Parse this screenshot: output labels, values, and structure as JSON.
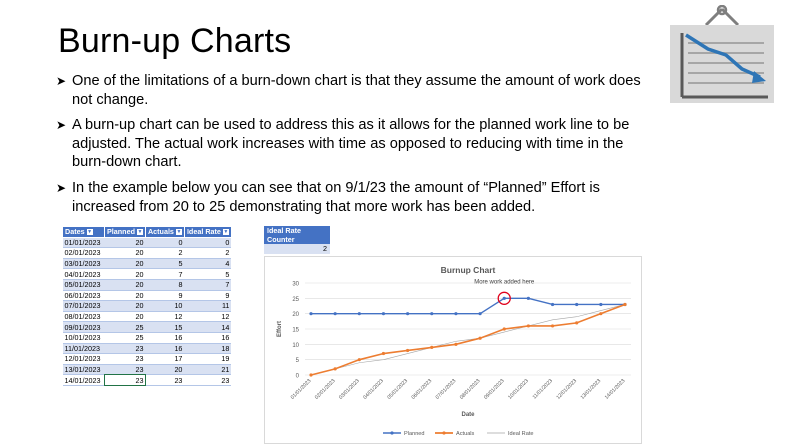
{
  "slide": {
    "title": "Burn-up Charts",
    "bullets": [
      "One of the limitations of a burn-down chart is that they assume the amount of work does not change.",
      "A burn-up chart can be used to address this as it allows for the planned work line to be adjusted.  The actual work increases with time as opposed to reducing with time in the burn-down chart.",
      "In the example below you can see that on 9/1/23 the amount of “Planned” Effort is increased from 20 to 25 demonstrating that more work has been added."
    ],
    "icon": "burndown-chart-board-icon"
  },
  "table": {
    "headers": [
      "Dates",
      "Planned",
      "Actuals",
      "Ideal Rate"
    ],
    "rows": [
      [
        "01/01/2023",
        "20",
        "0",
        "0"
      ],
      [
        "02/01/2023",
        "20",
        "2",
        "2"
      ],
      [
        "03/01/2023",
        "20",
        "5",
        "4"
      ],
      [
        "04/01/2023",
        "20",
        "7",
        "5"
      ],
      [
        "05/01/2023",
        "20",
        "8",
        "7"
      ],
      [
        "06/01/2023",
        "20",
        "9",
        "9"
      ],
      [
        "07/01/2023",
        "20",
        "10",
        "11"
      ],
      [
        "08/01/2023",
        "20",
        "12",
        "12"
      ],
      [
        "09/01/2023",
        "25",
        "15",
        "14"
      ],
      [
        "10/01/2023",
        "25",
        "16",
        "16"
      ],
      [
        "11/01/2023",
        "23",
        "16",
        "18"
      ],
      [
        "12/01/2023",
        "23",
        "17",
        "19"
      ],
      [
        "13/01/2023",
        "23",
        "20",
        "21"
      ],
      [
        "14/01/2023",
        "23",
        "23",
        "23"
      ]
    ]
  },
  "counter": {
    "label": "Ideal Rate Counter",
    "value": "2"
  },
  "colors": {
    "planned": "#4472c4",
    "actuals": "#ed7d31",
    "ideal": "#a5a5a5",
    "header": "#4472c4",
    "highlight": "#e0001b"
  },
  "chart_data": {
    "type": "line",
    "title": "Burnup Chart",
    "annotation": "More work added here",
    "xlabel": "Date",
    "ylabel": "Effort",
    "ylim": [
      0,
      30
    ],
    "yticks": [
      0,
      5,
      10,
      15,
      20,
      25,
      30
    ],
    "categories": [
      "01/01/2023",
      "02/01/2023",
      "03/01/2023",
      "04/01/2023",
      "05/01/2023",
      "06/01/2023",
      "07/01/2023",
      "08/01/2023",
      "09/01/2023",
      "10/01/2023",
      "11/01/2023",
      "12/01/2023",
      "13/01/2023",
      "14/01/2023"
    ],
    "series": [
      {
        "name": "Planned",
        "values": [
          20,
          20,
          20,
          20,
          20,
          20,
          20,
          20,
          25,
          25,
          23,
          23,
          23,
          23
        ]
      },
      {
        "name": "Actuals",
        "values": [
          0,
          2,
          5,
          7,
          8,
          9,
          10,
          12,
          15,
          16,
          16,
          17,
          20,
          23
        ]
      },
      {
        "name": "Ideal Rate",
        "values": [
          0,
          2,
          4,
          5,
          7,
          9,
          11,
          12,
          14,
          16,
          18,
          19,
          21,
          23
        ]
      }
    ],
    "highlight_index": 8,
    "grid": true,
    "legend": "bottom"
  }
}
